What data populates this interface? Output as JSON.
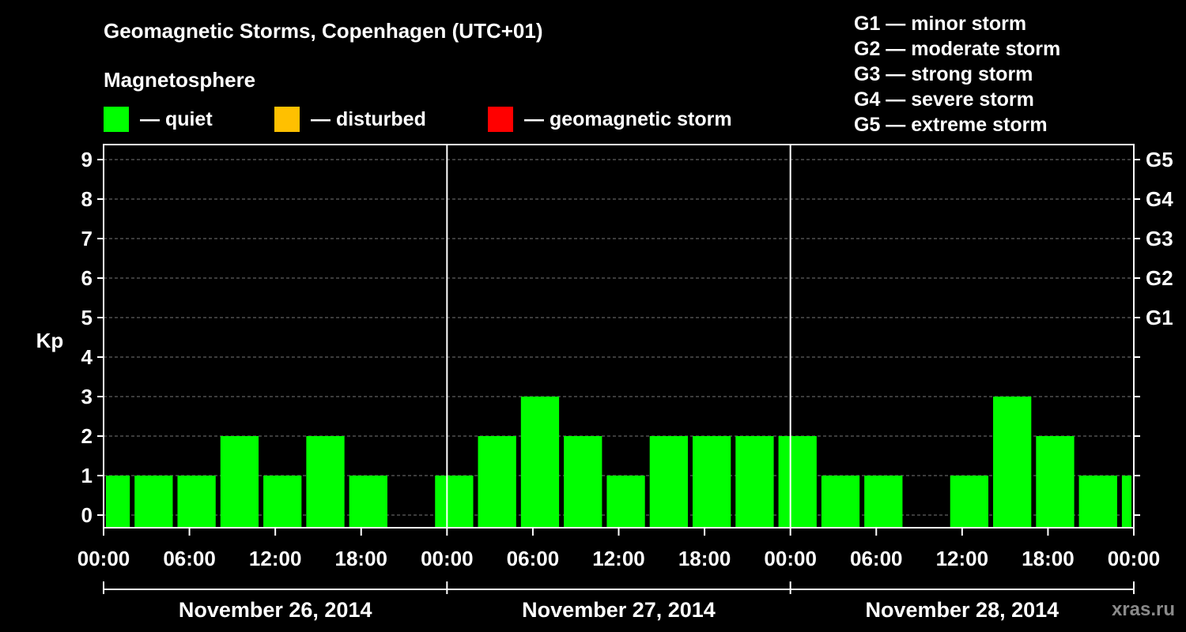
{
  "header": {
    "title": "Geomagnetic Storms, Copenhagen (UTC+01)",
    "subtitle": "Magnetosphere",
    "legend": [
      {
        "label": "— quiet",
        "color": "#00ff00"
      },
      {
        "label": "— disturbed",
        "color": "#ffc000"
      },
      {
        "label": "— geomagnetic storm",
        "color": "#ff0000"
      }
    ],
    "g_levels": [
      "G1 — minor storm",
      "G2 — moderate storm",
      "G3 — strong storm",
      "G4 — severe storm",
      "G5 — extreme storm"
    ]
  },
  "watermark": "xras.ru",
  "chart_data": {
    "type": "bar",
    "ylabel": "Kp",
    "ylim": [
      0,
      9
    ],
    "y_ticks": [
      "0",
      "1",
      "2",
      "3",
      "4",
      "5",
      "6",
      "7",
      "8",
      "9"
    ],
    "right_axis_labels": [
      {
        "y": 5,
        "label": "G1"
      },
      {
        "y": 6,
        "label": "G2"
      },
      {
        "y": 7,
        "label": "G3"
      },
      {
        "y": 8,
        "label": "G4"
      },
      {
        "y": 9,
        "label": "G5"
      }
    ],
    "x_tick_labels": [
      "00:00",
      "06:00",
      "12:00",
      "18:00",
      "00:00",
      "06:00",
      "12:00",
      "18:00",
      "00:00",
      "06:00",
      "12:00",
      "18:00",
      "00:00"
    ],
    "days": [
      "November 26, 2014",
      "November 27, 2014",
      "November 28, 2014"
    ],
    "bar_color": "#00ff00",
    "start_hour_offset": -1,
    "interval_hours": 3,
    "values": [
      1,
      1,
      1,
      2,
      1,
      2,
      1,
      0,
      1,
      2,
      3,
      2,
      1,
      2,
      2,
      2,
      2,
      1,
      1,
      0,
      1,
      3,
      2,
      1,
      1
    ],
    "grid": true
  }
}
